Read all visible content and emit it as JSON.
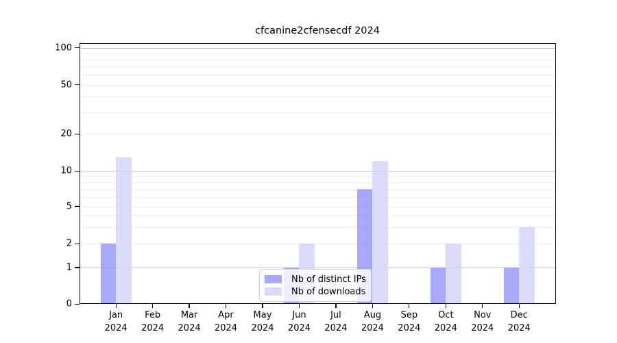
{
  "chart_data": {
    "type": "bar",
    "title": "cfcanine2cfensecdf 2024",
    "categories": [
      "Jan",
      "Feb",
      "Mar",
      "Apr",
      "May",
      "Jun",
      "Jul",
      "Aug",
      "Sep",
      "Oct",
      "Nov",
      "Dec"
    ],
    "year_label": "2024",
    "series": [
      {
        "name": "Nb of distinct IPs",
        "color": "#9292f9",
        "values": [
          2,
          0,
          0,
          0,
          0,
          1,
          0,
          7,
          0,
          1,
          0,
          1
        ]
      },
      {
        "name": "Nb of downloads",
        "color": "#d3d3f9",
        "values": [
          13,
          0,
          0,
          0,
          0,
          2,
          0,
          12,
          0,
          2,
          0,
          3
        ]
      }
    ],
    "bar_opacity": 0.8,
    "yticks": [
      0,
      1,
      2,
      5,
      10,
      20,
      50,
      100
    ],
    "ylim": [
      0,
      100
    ],
    "scale": "symlog",
    "grid": "on",
    "major_grid_values": [
      1,
      10,
      100
    ],
    "minor_grid_values": [
      2,
      3,
      4,
      5,
      6,
      7,
      8,
      9,
      20,
      30,
      40,
      50,
      60,
      70,
      80,
      90
    ],
    "major_grid_color": "#c3c3c3",
    "minor_grid_color": "#ececec",
    "legend_position": "lower-center-inside",
    "xlabel": "",
    "ylabel": ""
  }
}
